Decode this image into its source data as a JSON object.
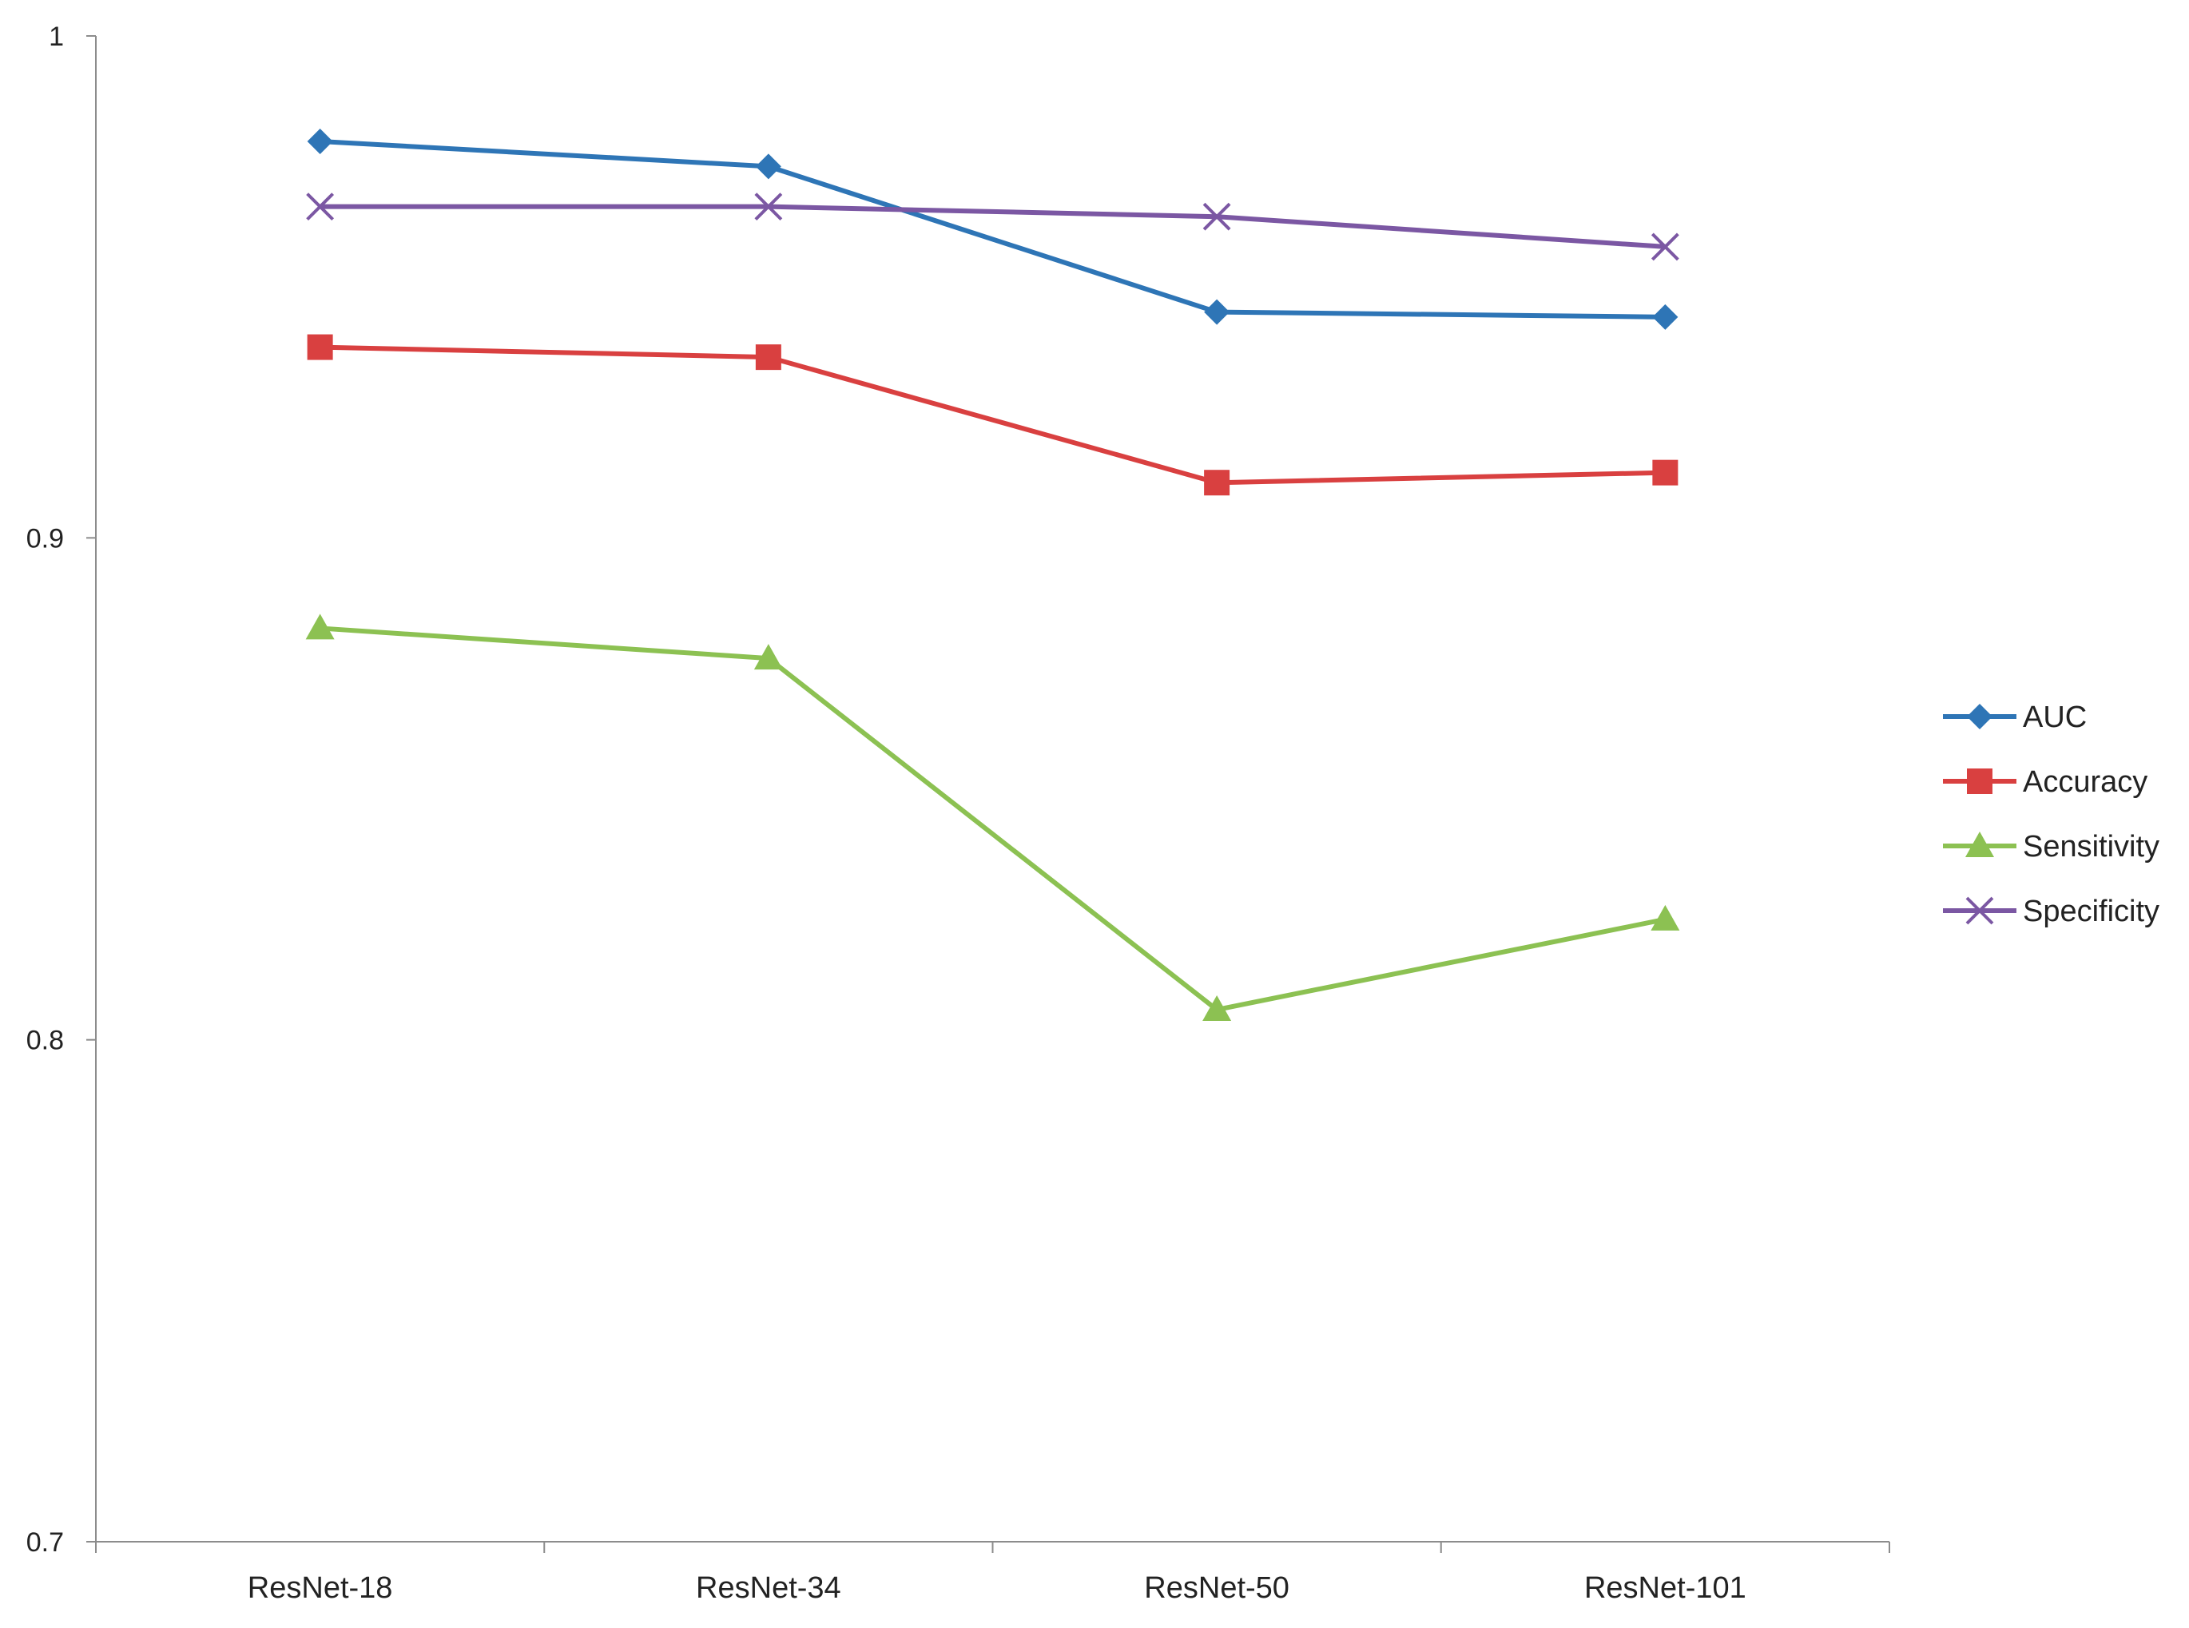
{
  "chart_data": {
    "type": "line",
    "title": "",
    "xlabel": "",
    "ylabel": "",
    "categories": [
      "ResNet-18",
      "ResNet-34",
      "ResNet-50",
      "ResNet-101"
    ],
    "ylim": [
      0.7,
      1.0
    ],
    "yticks": [
      0.7,
      0.8,
      0.9,
      1.0
    ],
    "ytick_labels": [
      "0.7",
      "0.8",
      "0.9",
      "1"
    ],
    "grid": false,
    "legend_position": "right",
    "series": [
      {
        "name": "AUC",
        "color": "#2e75b6",
        "marker": "diamond",
        "values": [
          0.979,
          0.974,
          0.945,
          0.944
        ]
      },
      {
        "name": "Accuracy",
        "color": "#d94040",
        "marker": "square",
        "values": [
          0.938,
          0.936,
          0.911,
          0.913
        ]
      },
      {
        "name": "Sensitivity",
        "color": "#8cc152",
        "marker": "triangle",
        "values": [
          0.882,
          0.876,
          0.806,
          0.824
        ]
      },
      {
        "name": "Specificity",
        "color": "#7b57a3",
        "marker": "x",
        "values": [
          0.966,
          0.966,
          0.964,
          0.958
        ]
      }
    ]
  }
}
